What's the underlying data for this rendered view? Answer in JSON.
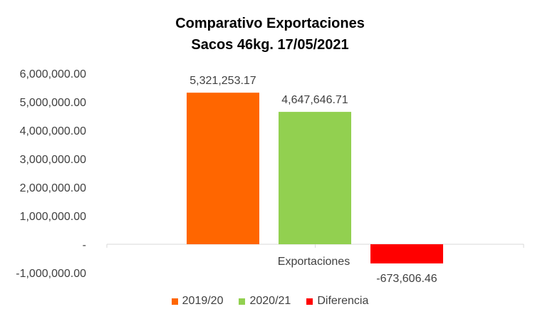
{
  "chart_data": {
    "type": "bar",
    "title": "Comparativo  Exportaciones",
    "subtitle": "Sacos 46kg. 17/05/2021",
    "categories": [
      "Exportaciones"
    ],
    "series": [
      {
        "name": "2019/20",
        "values": [
          5321253.17
        ],
        "label": "5,321,253.17",
        "color": "#FF6600"
      },
      {
        "name": "2020/21",
        "values": [
          4647646.71
        ],
        "label": "4,647,646.71",
        "color": "#92D050"
      },
      {
        "name": "Diferencia",
        "values": [
          -673606.46
        ],
        "label": "-673,606.46",
        "color": "#FF0000"
      }
    ],
    "ylim": [
      -1000000,
      6000000
    ],
    "yticks": [
      {
        "value": 6000000,
        "label": "6,000,000.00"
      },
      {
        "value": 5000000,
        "label": "5,000,000.00"
      },
      {
        "value": 4000000,
        "label": "4,000,000.00"
      },
      {
        "value": 3000000,
        "label": "3,000,000.00"
      },
      {
        "value": 2000000,
        "label": "2,000,000.00"
      },
      {
        "value": 1000000,
        "label": "1,000,000.00"
      },
      {
        "value": 0,
        "label": "-"
      },
      {
        "value": -1000000,
        "label": "-1,000,000.00"
      }
    ],
    "grid": false,
    "legend_position": "bottom"
  }
}
